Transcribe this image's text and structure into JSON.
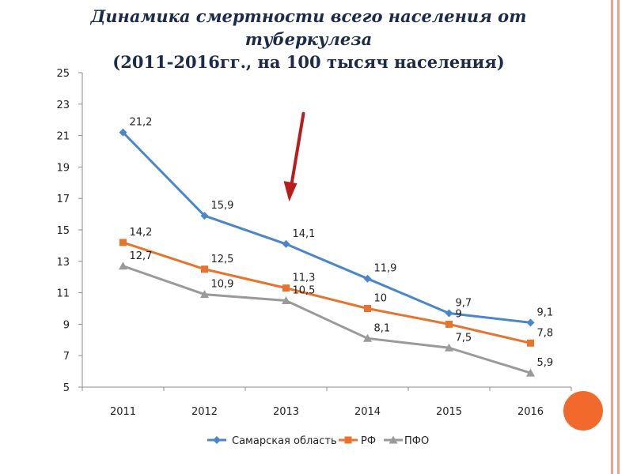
{
  "title": {
    "line1": "Динамика смертности всего населения от",
    "line2": "туберкулеза",
    "line3": "(2011-2016гг., на 100 тысяч населения)"
  },
  "colors": {
    "title": "#1d2b4b",
    "samara": "#4a86c8",
    "rf": "#e8732c",
    "pfo": "#9a9a9a",
    "arrow": "#b81d1d",
    "accent_circle": "#f26a2b",
    "frame": "#e8a486"
  },
  "chart_data": {
    "type": "line",
    "categories": [
      "2011",
      "2012",
      "2013",
      "2014",
      "2015",
      "2016"
    ],
    "ylim": [
      5,
      25
    ],
    "yticks": [
      5,
      7,
      9,
      11,
      13,
      15,
      17,
      19,
      21,
      23,
      25
    ],
    "grid": false,
    "legend_position": "bottom",
    "series": [
      {
        "name": "Самарская область",
        "marker": "diamond",
        "values": [
          21.2,
          15.9,
          14.1,
          11.9,
          9.7,
          9.1
        ],
        "labels": [
          "21,2",
          "15,9",
          "14,1",
          "11,9",
          "9,7",
          "9,1"
        ]
      },
      {
        "name": "РФ",
        "marker": "square",
        "values": [
          14.2,
          12.5,
          11.3,
          10,
          9,
          7.8
        ],
        "labels": [
          "14,2",
          "12,5",
          "11,3",
          "10",
          "9",
          "7,8"
        ]
      },
      {
        "name": "ПФО",
        "marker": "triangle",
        "values": [
          12.7,
          10.9,
          10.5,
          8.1,
          7.5,
          5.9
        ],
        "labels": [
          "12,7",
          "10,9",
          "10,5",
          "8,1",
          "7,5",
          "5,9"
        ]
      }
    ],
    "annotation": {
      "type": "arrow",
      "category": "2013",
      "from_value": 22.4,
      "to_value": 16.8
    }
  }
}
